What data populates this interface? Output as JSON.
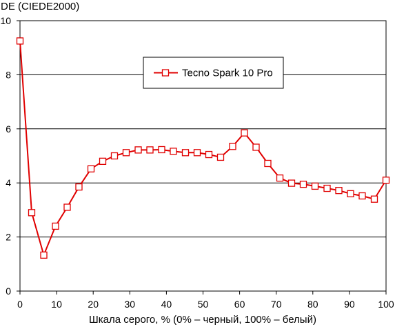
{
  "chart_data": {
    "type": "line",
    "ylabel": "DE (CIEDE2000)",
    "xlabel": "Шкала серого, % (0% – черный, 100% – белый)",
    "xlim": [
      0,
      100
    ],
    "ylim": [
      0,
      10
    ],
    "xticks": [
      0,
      10,
      20,
      30,
      40,
      50,
      60,
      70,
      80,
      90,
      100
    ],
    "yticks": [
      0,
      2,
      4,
      6,
      8,
      10
    ],
    "grid": "horizontal",
    "legend_position": "top-center",
    "series": [
      {
        "name": "Tecno Spark 10 Pro",
        "color": "#e00000",
        "marker": "square-open",
        "x": [
          0,
          3.2,
          6.5,
          9.7,
          12.9,
          16.1,
          19.4,
          22.6,
          25.8,
          29.0,
          32.3,
          35.5,
          38.7,
          41.9,
          45.2,
          48.4,
          51.6,
          54.8,
          58.1,
          61.3,
          64.5,
          67.7,
          71.0,
          74.2,
          77.4,
          80.6,
          83.9,
          87.1,
          90.3,
          93.5,
          96.8,
          100
        ],
        "y": [
          9.25,
          2.9,
          1.33,
          2.4,
          3.1,
          3.85,
          4.52,
          4.8,
          5.0,
          5.12,
          5.22,
          5.22,
          5.23,
          5.17,
          5.12,
          5.12,
          5.05,
          4.95,
          5.35,
          5.85,
          5.32,
          4.72,
          4.18,
          3.99,
          3.95,
          3.88,
          3.8,
          3.72,
          3.6,
          3.52,
          3.4,
          4.1
        ]
      }
    ]
  }
}
